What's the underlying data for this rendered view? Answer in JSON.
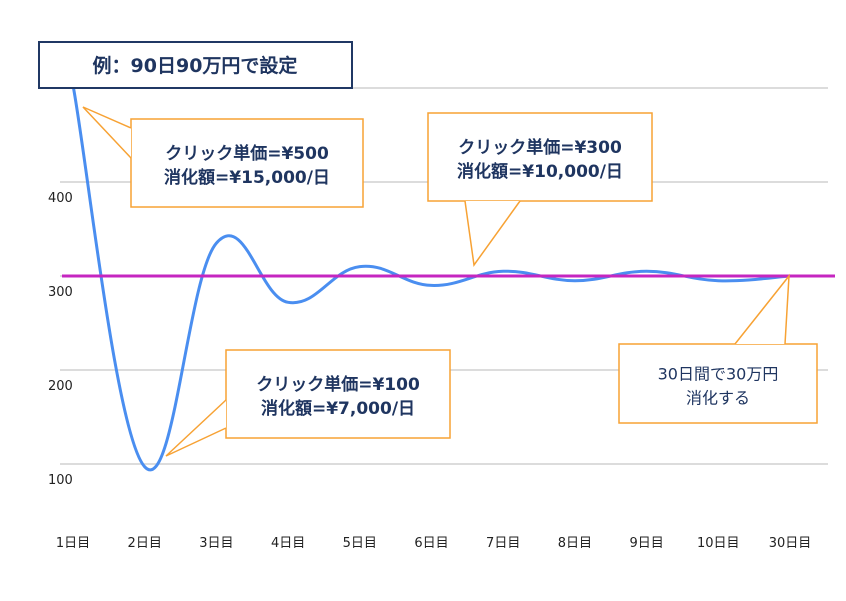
{
  "chart_data": {
    "type": "line",
    "title": "例：90日90万円で設定",
    "categories": [
      "1日目",
      "2日目",
      "3日目",
      "4日目",
      "5日目",
      "6日目",
      "7日目",
      "8日目",
      "9日目",
      "10日目",
      "30日目"
    ],
    "series": [
      {
        "values": [
          503,
          97,
          335,
          272,
          310,
          290,
          305,
          295,
          305,
          295,
          300
        ],
        "color": "#4a8ef0"
      },
      {
        "values": [
          300,
          300,
          300,
          300,
          300,
          300,
          300,
          300,
          300,
          300,
          300
        ],
        "color": "#c526c0"
      }
    ],
    "yticks": [
      100,
      200,
      300,
      400
    ],
    "gridlines": [
      100,
      200,
      300,
      400,
      500
    ],
    "ylim": [
      0,
      510
    ],
    "grid": true,
    "annotations": [
      {
        "lines": [
          "クリック単価=¥500",
          "消化額=¥15,000/日"
        ],
        "target_category": "1日目"
      },
      {
        "lines": [
          "クリック単価=¥300",
          "消化額=¥10,000/日"
        ],
        "target_category": "7日目"
      },
      {
        "lines": [
          "クリック単価=¥100",
          "消化額=¥7,000/日"
        ],
        "target_category": "2日目"
      },
      {
        "lines": [
          "30日間で30万円",
          "消化する"
        ],
        "target_category": "30日目"
      }
    ],
    "colors": {
      "callout_border": "#f7a234",
      "title_border": "#203864",
      "text": "#1f3560",
      "grid": "#d0d0d0"
    }
  }
}
